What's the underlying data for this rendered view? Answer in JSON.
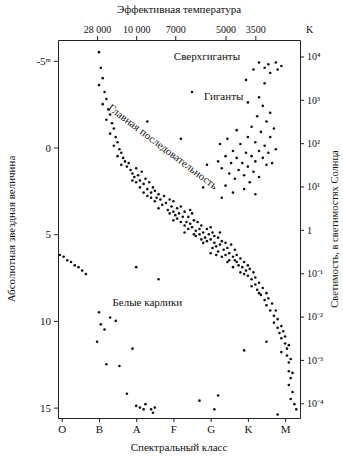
{
  "chart_data": {
    "type": "scatter",
    "x_label": "Спектральный класс",
    "y_label": "Абсолютная звездная величина",
    "y2_label": "Светимость, в светимостях Солнца",
    "temperature": {
      "title": "Эффективная температура",
      "unit": "K",
      "spectral_class": [
        0.95,
        2.0,
        3.05,
        4.4,
        5.2
      ],
      "ticks": [
        {
          "value": 28000,
          "label": "28 000"
        },
        {
          "value": 10000,
          "label": "10 000"
        },
        7000,
        5000,
        3500
      ]
    },
    "xlim": [
      -0.1,
      6.4
    ],
    "xticks": [
      {
        "value": 0,
        "label": "O"
      },
      {
        "value": 1,
        "label": "B"
      },
      {
        "value": 2,
        "label": "A"
      },
      {
        "value": 3,
        "label": "F"
      },
      {
        "value": 4,
        "label": "G"
      },
      {
        "value": 5,
        "label": "K"
      },
      {
        "value": 6,
        "label": "M"
      }
    ],
    "ylim": [
      15.6,
      -6.2
    ],
    "yticks": [
      {
        "value": -5,
        "label": "-5ᵐ"
      },
      0,
      5,
      10,
      15
    ],
    "y2lim": [
      4.57e-05,
      24000
    ],
    "y2ticks": [
      {
        "value": 10000,
        "label": "10⁴"
      },
      {
        "value": 1000,
        "label": "10³"
      },
      {
        "value": 100,
        "label": "10²"
      },
      {
        "value": 10,
        "label": "10¹"
      },
      1,
      {
        "value": 0.1,
        "label": "10⁻¹"
      },
      {
        "value": 0.01,
        "label": "10⁻²"
      },
      {
        "value": 0.001,
        "label": "10⁻³"
      },
      {
        "value": 0.0001,
        "label": "10⁻⁴"
      }
    ],
    "log": "y2",
    "marker": "circle",
    "color": "#111111",
    "annotations": [
      {
        "text": "Сверхгиганты",
        "x": 3.9,
        "y": -5.2
      },
      {
        "text": "Гиганты",
        "x": 4.35,
        "y": -2.9
      },
      {
        "text": "Главная последовательность",
        "x": 2.7,
        "y": 0.0
      },
      {
        "text": "Белые карлики",
        "x": 2.3,
        "y": 9.0
      }
    ],
    "x": [
      1.05,
      1.1,
      1.0,
      1.15,
      1.2,
      1.1,
      1.25,
      1.3,
      1.2,
      1.35,
      1.4,
      1.3,
      1.45,
      1.5,
      1.4,
      1.55,
      1.6,
      1.5,
      1.65,
      1.7,
      1.6,
      1.75,
      1.8,
      1.85,
      1.9,
      2.0,
      1.95,
      2.05,
      2.1,
      2.0,
      2.15,
      2.2,
      2.1,
      2.25,
      2.3,
      2.35,
      2.4,
      2.3,
      2.45,
      2.5,
      2.55,
      2.5,
      2.6,
      2.65,
      2.7,
      2.6,
      2.75,
      2.8,
      2.85,
      2.9,
      2.95,
      3.0,
      3.0,
      3.05,
      3.1,
      3.15,
      3.1,
      3.2,
      3.25,
      3.3,
      3.35,
      3.3,
      3.4,
      3.45,
      3.5,
      3.5,
      3.55,
      3.6,
      3.65,
      3.7,
      3.7,
      3.75,
      3.8,
      3.85,
      3.9,
      3.9,
      3.95,
      4.0,
      4.0,
      4.05,
      4.1,
      4.1,
      4.15,
      4.2,
      4.25,
      4.2,
      4.3,
      4.35,
      4.4,
      4.4,
      4.45,
      4.5,
      4.55,
      4.5,
      4.6,
      4.65,
      4.7,
      4.7,
      4.75,
      4.8,
      4.85,
      4.9,
      4.95,
      5.0,
      5.0,
      5.05,
      5.1,
      5.15,
      5.2,
      5.2,
      5.25,
      5.3,
      5.35,
      5.4,
      5.45,
      5.5,
      5.5,
      5.55,
      5.6,
      5.65,
      5.7,
      5.7,
      5.75,
      5.8,
      5.8,
      5.85,
      5.9,
      5.9,
      5.95,
      6.0,
      6.0,
      6.05,
      6.05,
      6.1,
      6.1,
      6.1,
      6.15,
      6.15,
      6.1,
      6.2,
      6.2,
      6.15,
      6.25,
      6.3,
      3.2,
      3.4,
      3.6,
      3.8,
      4.05,
      4.3,
      4.6,
      4.8,
      3.45,
      2.9,
      3.55,
      4.25,
      4.45,
      4.9,
      5.1,
      5.3,
      2.4,
      2.2,
      1.9,
      3.75,
      4.15,
      4.65,
      3.0,
      3.3,
      4.0,
      4.2,
      4.3,
      4.4,
      4.5,
      4.55,
      4.6,
      4.65,
      4.7,
      4.75,
      4.8,
      4.85,
      4.9,
      4.95,
      5.0,
      5.0,
      5.05,
      5.1,
      5.1,
      5.15,
      5.2,
      5.2,
      5.25,
      5.3,
      5.3,
      5.35,
      5.4,
      5.4,
      5.45,
      5.5,
      5.5,
      5.55,
      5.6,
      5.6,
      5.65,
      5.7,
      5.75,
      4.4,
      4.6,
      4.3,
      4.9,
      5.2,
      4.45,
      4.7,
      5.0,
      5.3,
      4.25,
      3.9,
      3.8,
      5.15,
      5.3,
      5.45,
      5.55,
      5.6,
      5.75,
      5.8,
      5.9,
      5.45,
      4.95,
      3.5,
      1.0,
      2.3,
      3.2,
      -0.05,
      0.05,
      0.15,
      0.25,
      0.35,
      0.45,
      0.55,
      0.65,
      1.0,
      1.05,
      1.15,
      1.3,
      1.45,
      0.95,
      1.2,
      1.75,
      2.0,
      2.1,
      2.2,
      2.25,
      2.5,
      1.9,
      2.6,
      2.0,
      3.7,
      4.2,
      4.1,
      5.8,
      5.9,
      5.5,
      4.9,
      1.55,
      2.4,
      2.45
    ],
    "values": [
      -4.6,
      -4.0,
      -3.6,
      -3.2,
      -2.8,
      -2.5,
      -2.2,
      -1.9,
      -1.6,
      -1.4,
      -1.1,
      -0.8,
      -0.6,
      -0.3,
      -0.1,
      0.1,
      0.3,
      0.5,
      0.6,
      0.8,
      1.0,
      1.1,
      0.9,
      1.3,
      1.5,
      1.2,
      1.7,
      1.6,
      1.9,
      2.0,
      1.4,
      2.1,
      2.3,
      1.8,
      2.4,
      2.0,
      2.6,
      2.8,
      2.3,
      2.5,
      2.9,
      3.1,
      2.7,
      3.0,
      3.3,
      3.5,
      2.8,
      3.2,
      3.6,
      3.0,
      3.4,
      3.7,
      3.1,
      3.9,
      3.5,
      3.8,
      4.1,
      3.4,
      4.0,
      3.7,
      4.3,
      4.5,
      4.0,
      4.4,
      3.8,
      4.6,
      4.2,
      4.8,
      4.3,
      4.7,
      5.0,
      4.5,
      4.9,
      5.2,
      4.7,
      5.4,
      5.0,
      4.6,
      5.3,
      4.9,
      5.5,
      5.1,
      5.7,
      5.2,
      5.6,
      6.0,
      5.4,
      5.9,
      5.5,
      6.2,
      5.8,
      6.1,
      5.6,
      6.5,
      6.3,
      5.9,
      6.6,
      6.2,
      6.8,
      6.4,
      6.9,
      6.6,
      7.1,
      6.8,
      7.4,
      7.0,
      7.6,
      7.2,
      7.9,
      7.5,
      8.2,
      7.8,
      8.5,
      8.1,
      8.8,
      8.4,
      9.1,
      8.7,
      9.4,
      9.0,
      9.7,
      10.1,
      9.4,
      10.4,
      9.9,
      10.7,
      10.3,
      11.0,
      10.6,
      11.3,
      10.9,
      11.6,
      12.0,
      11.4,
      12.4,
      12.9,
      12.2,
      13.3,
      13.7,
      13.0,
      14.1,
      14.5,
      14.8,
      15.1,
      4.3,
      4.7,
      5.1,
      5.5,
      5.8,
      6.3,
      6.9,
      7.2,
      3.6,
      3.8,
      5.0,
      4.9,
      6.6,
      7.3,
      8.0,
      8.4,
      2.9,
      2.6,
      1.9,
      5.3,
      6.2,
      6.5,
      4.2,
      4.9,
      6.1,
      0.8,
      1.2,
      0.5,
      1.5,
      0.9,
      0.2,
      1.8,
      0.6,
      1.3,
      -0.2,
      0.9,
      1.6,
      0.3,
      -0.6,
      1.1,
      2.0,
      0.5,
      -1.2,
      1.4,
      -0.3,
      0.8,
      -1.8,
      0.2,
      1.7,
      -0.9,
      0.6,
      -2.4,
      -0.1,
      1.0,
      -1.5,
      0.3,
      -0.6,
      -2.0,
      0.9,
      -1.1,
      0.1,
      2.2,
      2.6,
      2.9,
      2.4,
      2.7,
      -0.5,
      -1.0,
      -2.6,
      -2.9,
      -0.2,
      1.0,
      2.3,
      -4.5,
      -4.9,
      -4.6,
      -4.8,
      -4.3,
      -4.9,
      -4.5,
      -4.7,
      -3.7,
      -3.9,
      -3.2,
      -5.5,
      -1.5,
      -0.5,
      6.2,
      6.3,
      6.5,
      6.6,
      6.8,
      6.9,
      7.1,
      7.3,
      9.5,
      10.2,
      10.5,
      9.8,
      10.0,
      11.2,
      12.5,
      14.2,
      14.9,
      15.0,
      15.1,
      14.8,
      15.0,
      11.6,
      7.6,
      6.9,
      14.6,
      14.3,
      15.1,
      15.4,
      11.8,
      11.2,
      11.7,
      12.6,
      15.1,
      15.3
    ]
  }
}
